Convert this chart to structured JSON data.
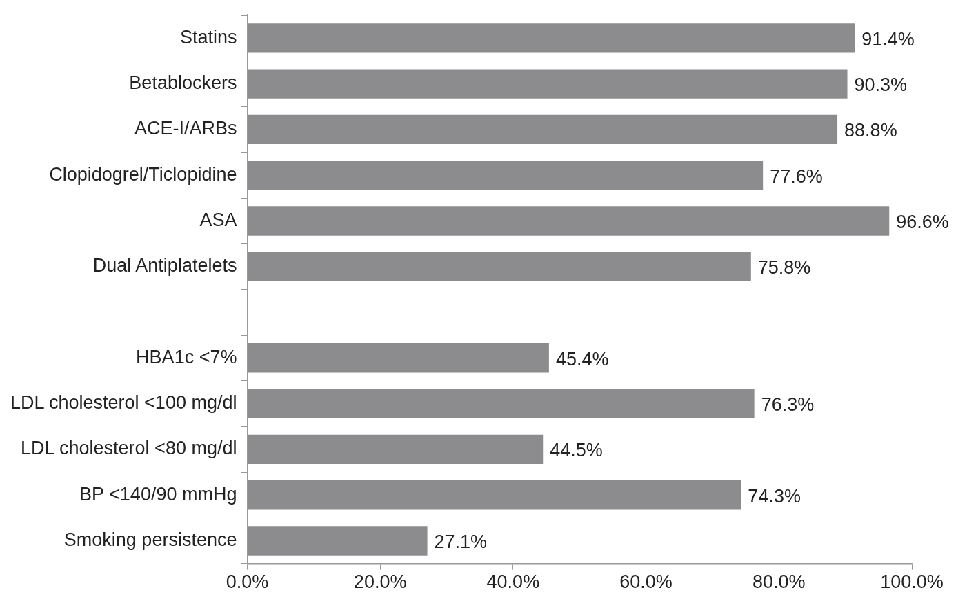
{
  "chart_data": {
    "type": "bar",
    "orientation": "horizontal",
    "categories": [
      "Statins",
      "Betablockers",
      "ACE-I/ARBs",
      "Clopidogrel/Ticlopidine",
      "ASA",
      "Dual Antiplatelets",
      null,
      "HBA1c <7%",
      "LDL cholesterol <100 mg/dl",
      "LDL cholesterol <80 mg/dl",
      "BP <140/90 mmHg",
      "Smoking persistence"
    ],
    "values": [
      91.4,
      90.3,
      88.8,
      77.6,
      96.6,
      75.8,
      null,
      45.4,
      76.3,
      44.5,
      74.3,
      27.1
    ],
    "value_labels": [
      "91.4%",
      "90.3%",
      "88.8%",
      "77.6%",
      "96.6%",
      "75.8%",
      null,
      "45.4%",
      "76.3%",
      "44.5%",
      "74.3%",
      "27.1%"
    ],
    "color": "#8c8c8e",
    "xlim": [
      0,
      100
    ],
    "xticks": [
      {
        "value": 0,
        "label": "0.0%"
      },
      {
        "value": 20,
        "label": "20.0%"
      },
      {
        "value": 40,
        "label": "40.0%"
      },
      {
        "value": 60,
        "label": "60.0%"
      },
      {
        "value": 80,
        "label": "80.0%"
      },
      {
        "value": 100,
        "label": "100.0%"
      }
    ],
    "grid": false,
    "legend": false
  }
}
